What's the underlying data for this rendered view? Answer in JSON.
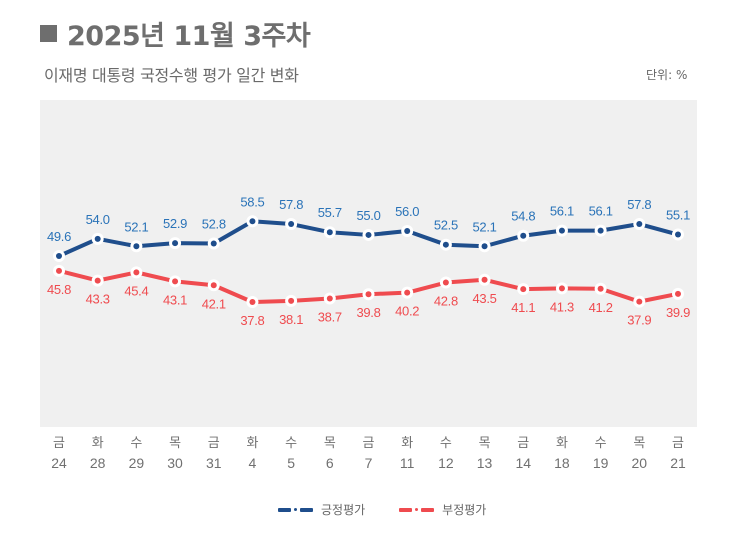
{
  "header": {
    "title": "2025년 11월 3주차",
    "subtitle": "이재명 대통령 국정수행 평가 일간 변화",
    "unit": "단위: %"
  },
  "colors": {
    "positive": "#1f4e8c",
    "positive_label": "#2a73b8",
    "negative": "#ef4b4f",
    "negative_label": "#ef4b4f",
    "plot_bg": "#f0f0f0",
    "axis_text": "#707070"
  },
  "chart_data": {
    "type": "line",
    "title": "2025년 11월 3주차",
    "subtitle": "이재명 대통령 국정수행 평가 일간 변화",
    "unit": "%",
    "weekdays": [
      "금",
      "화",
      "수",
      "목",
      "금",
      "화",
      "수",
      "목",
      "금",
      "화",
      "수",
      "목",
      "금",
      "화",
      "수",
      "목",
      "금"
    ],
    "categories": [
      "24",
      "28",
      "29",
      "30",
      "31",
      "4",
      "5",
      "6",
      "7",
      "11",
      "12",
      "13",
      "14",
      "18",
      "19",
      "20",
      "21"
    ],
    "series": [
      {
        "name": "긍정평가",
        "values": [
          49.6,
          54.0,
          52.1,
          52.9,
          52.8,
          58.5,
          57.8,
          55.7,
          55.0,
          56.0,
          52.5,
          52.1,
          54.8,
          56.1,
          56.1,
          57.8,
          55.1
        ]
      },
      {
        "name": "부정평가",
        "values": [
          45.8,
          43.3,
          45.4,
          43.1,
          42.1,
          37.8,
          38.1,
          38.7,
          39.8,
          40.2,
          42.8,
          43.5,
          41.1,
          41.3,
          41.2,
          37.9,
          39.9
        ]
      }
    ],
    "ylim": [
      0,
      100
    ],
    "grid": false,
    "legend": "bottom-center",
    "xlabel": "",
    "ylabel": ""
  },
  "legend": {
    "items": [
      "긍정평가",
      "부정평가"
    ]
  }
}
